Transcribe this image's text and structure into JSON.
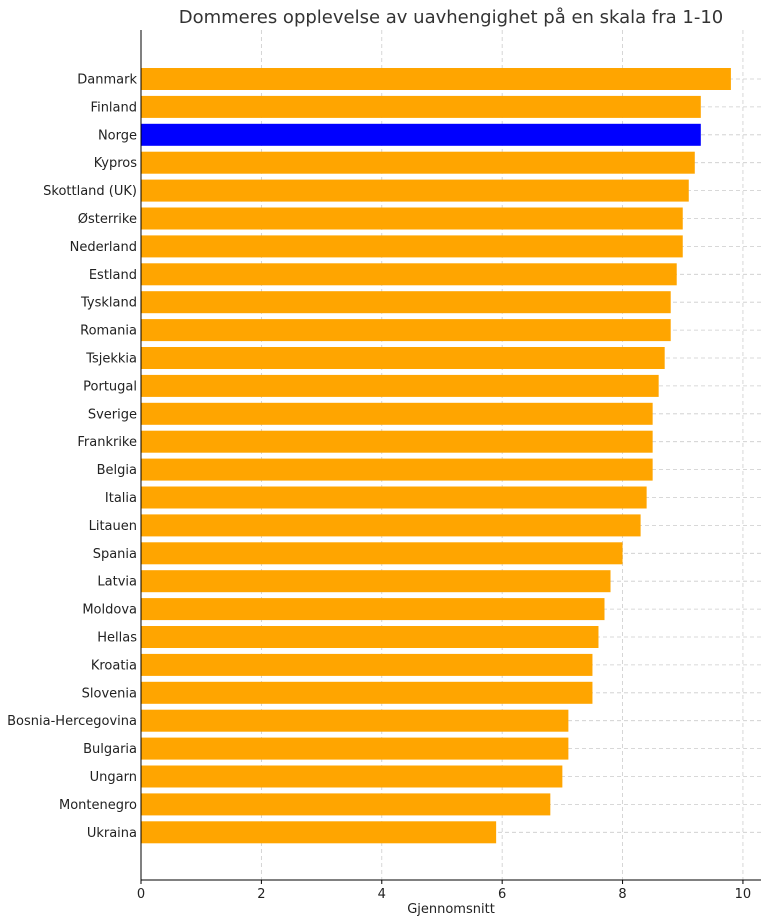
{
  "chart_data": {
    "type": "bar",
    "orientation": "horizontal",
    "title": "Dommeres opplevelse av uavhengighet på en skala fra 1-10",
    "xlabel": "Gjennomsnitt",
    "ylabel": "",
    "xlim": [
      0,
      10.3
    ],
    "xticks": [
      "0",
      "2",
      "4",
      "6",
      "8",
      "10"
    ],
    "grid": true,
    "colors": {
      "default": "#FFA500",
      "highlight": "#0000FF"
    },
    "highlight": "Norge",
    "categories": [
      "Danmark",
      "Finland",
      "Norge",
      "Kypros",
      "Skottland (UK)",
      "Østerrike",
      "Nederland",
      "Estland",
      "Tyskland",
      "Romania",
      "Tsjekkia",
      "Portugal",
      "Sverige",
      "Frankrike",
      "Belgia",
      "Italia",
      "Litauen",
      "Spania",
      "Latvia",
      "Moldova",
      "Hellas",
      "Kroatia",
      "Slovenia",
      "Bosnia-Hercegovina",
      "Bulgaria",
      "Ungarn",
      "Montenegro",
      "Ukraina"
    ],
    "values": [
      9.8,
      9.3,
      9.3,
      9.2,
      9.1,
      9.0,
      9.0,
      8.9,
      8.8,
      8.8,
      8.7,
      8.6,
      8.5,
      8.5,
      8.5,
      8.4,
      8.3,
      8.0,
      7.8,
      7.7,
      7.6,
      7.5,
      7.5,
      7.1,
      7.1,
      7.0,
      6.8,
      5.9
    ]
  }
}
